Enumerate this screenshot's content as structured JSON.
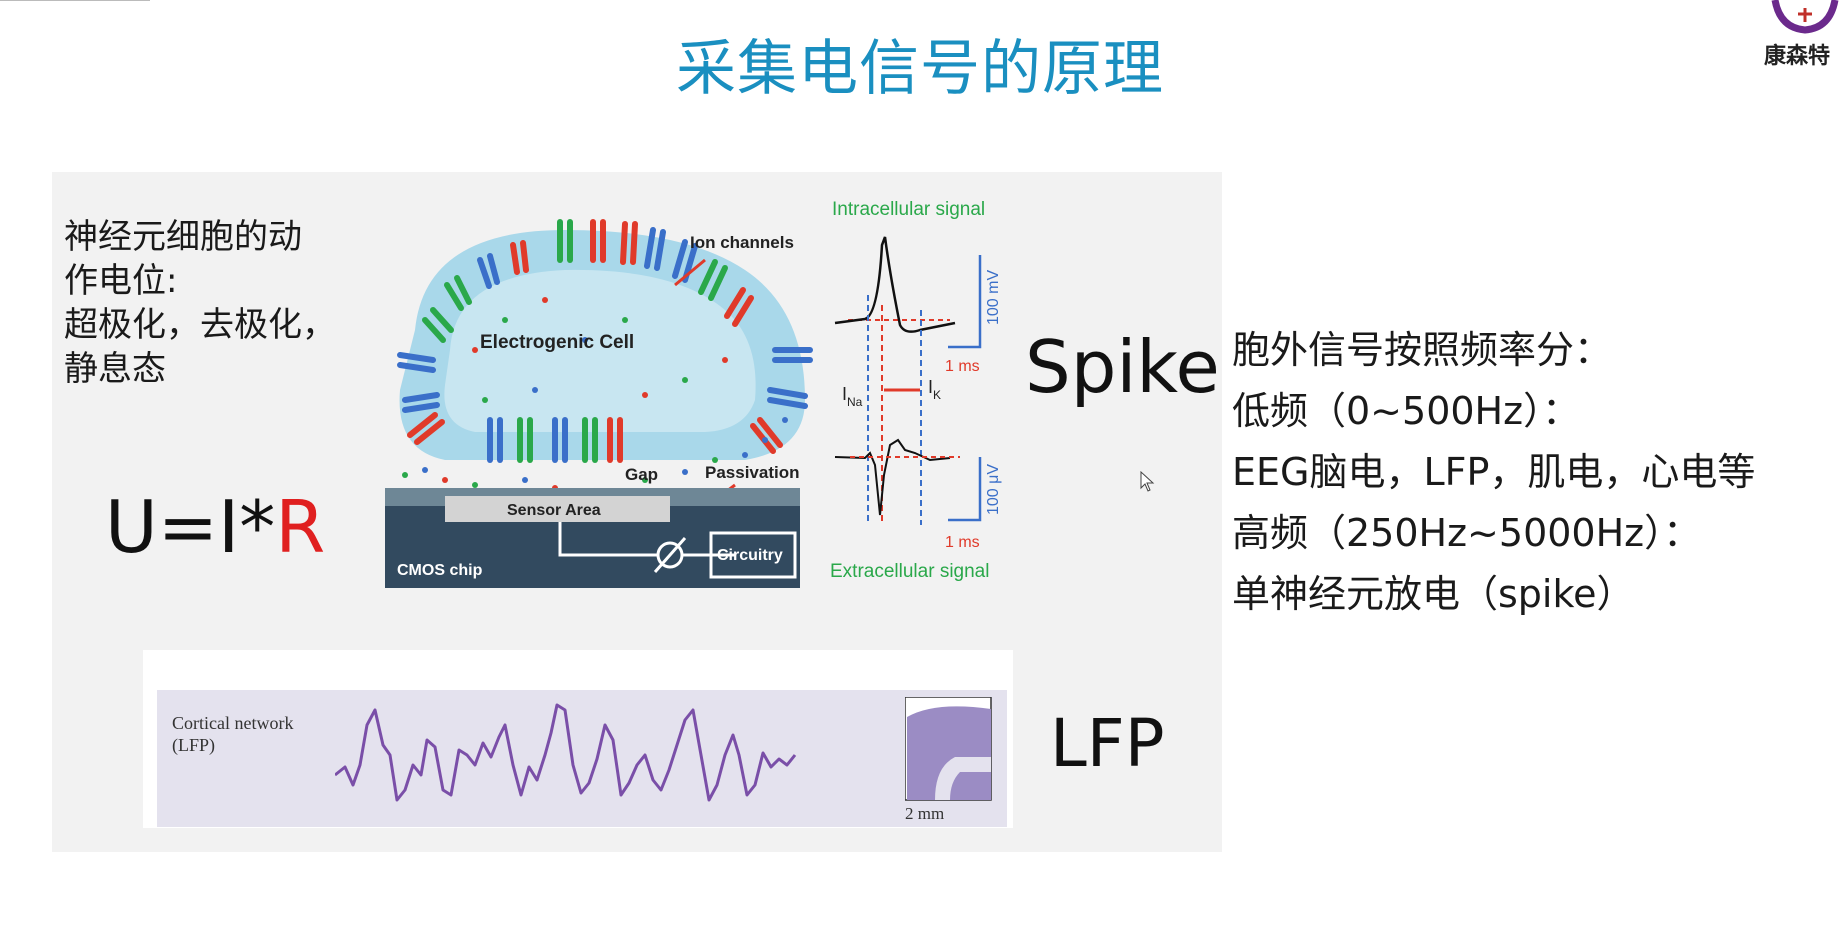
{
  "slide": {
    "title": "采集电信号的原理",
    "logo_text": "康森特"
  },
  "left": {
    "lines": [
      "神经元细胞的动",
      "作电位:",
      "超极化，去极化，",
      "静息态"
    ],
    "formula_main": "U=I*",
    "formula_r": "R"
  },
  "diagram": {
    "ion_channels": "Ion channels",
    "cell": "Electrogenic Cell",
    "gap": "Gap",
    "passivation": "Passivation",
    "sensor_area": "Sensor Area",
    "circuitry": "Circuitry",
    "cmos": "CMOS chip",
    "intracellular": "Intracellular signal",
    "extracellular": "Extracellular signal",
    "scale_top_v": "100 mV",
    "scale_top_t": "1 ms",
    "scale_bot_v": "100 μV",
    "scale_bot_t": "1 ms",
    "i_na": "I",
    "i_na_sub": "Na",
    "i_k": "I",
    "i_k_sub": "K",
    "colors": {
      "green": "#2aa84a",
      "red": "#e03a2a",
      "blue": "#3a6fc9",
      "chip": "#324a5f",
      "cell": "#a9d8ea"
    }
  },
  "labels": {
    "spike": "Spike",
    "lfp": "LFP"
  },
  "lfp_panel": {
    "caption_line1": "Cortical network",
    "caption_line2": "(LFP)",
    "scale": "2 mm",
    "trace_color": "#7a4fa8"
  },
  "right": {
    "lines": [
      "胞外信号按照频率分：",
      "低频（0~500Hz）：",
      "EEG脑电，LFP，肌电，心电等",
      "高频（250Hz~5000Hz）：",
      "单神经元放电（spike）"
    ]
  }
}
